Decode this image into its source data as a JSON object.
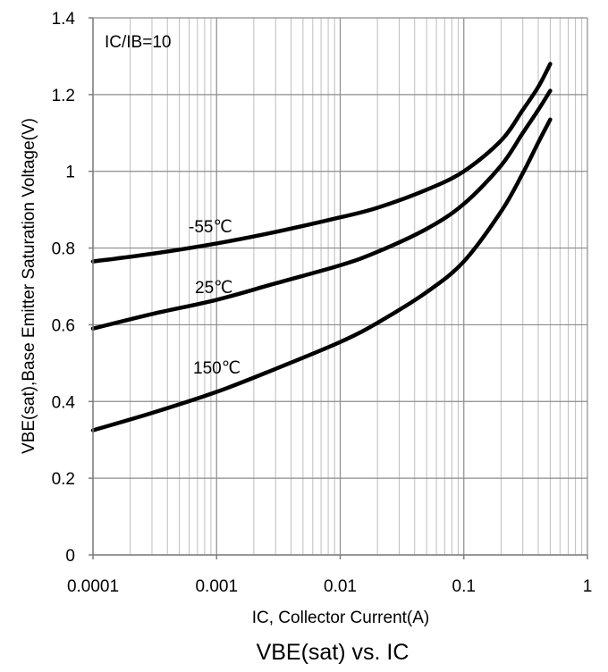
{
  "chart_data": {
    "type": "line",
    "title": "VBE(sat) vs. IC",
    "xlabel": "IC, Collector Current(A)",
    "ylabel": "VBE(sat),Base Emitter Saturation Voltage(V)",
    "xscale": "log",
    "xlim": [
      0.0001,
      1
    ],
    "ylim": [
      0,
      1.4
    ],
    "x_ticks": [
      0.0001,
      0.001,
      0.01,
      0.1,
      1
    ],
    "x_tick_labels": [
      "0.0001",
      "0.001",
      "0.01",
      "0.1",
      "1"
    ],
    "y_ticks": [
      0,
      0.2,
      0.4,
      0.6,
      0.8,
      1,
      1.2,
      1.4
    ],
    "y_tick_labels": [
      "0",
      "0.2",
      "0.4",
      "0.6",
      "0.8",
      "1",
      "1.2",
      "1.4"
    ],
    "grid": true,
    "annotation": "IC/IB=10",
    "series": [
      {
        "name": "-55℃",
        "x": [
          0.0001,
          0.0003,
          0.001,
          0.003,
          0.01,
          0.02,
          0.05,
          0.1,
          0.2,
          0.3,
          0.4,
          0.5
        ],
        "y": [
          0.765,
          0.785,
          0.812,
          0.842,
          0.88,
          0.905,
          0.952,
          1.0,
          1.08,
          1.16,
          1.22,
          1.28
        ]
      },
      {
        "name": "25℃",
        "x": [
          0.0001,
          0.0003,
          0.001,
          0.003,
          0.01,
          0.02,
          0.05,
          0.1,
          0.2,
          0.3,
          0.4,
          0.5
        ],
        "y": [
          0.59,
          0.628,
          0.665,
          0.708,
          0.755,
          0.79,
          0.85,
          0.915,
          1.015,
          1.1,
          1.16,
          1.21
        ]
      },
      {
        "name": "150℃",
        "x": [
          0.0001,
          0.0003,
          0.001,
          0.003,
          0.01,
          0.02,
          0.05,
          0.1,
          0.2,
          0.3,
          0.4,
          0.5
        ],
        "y": [
          0.325,
          0.37,
          0.425,
          0.485,
          0.555,
          0.605,
          0.685,
          0.765,
          0.895,
          0.995,
          1.075,
          1.135
        ]
      }
    ]
  }
}
